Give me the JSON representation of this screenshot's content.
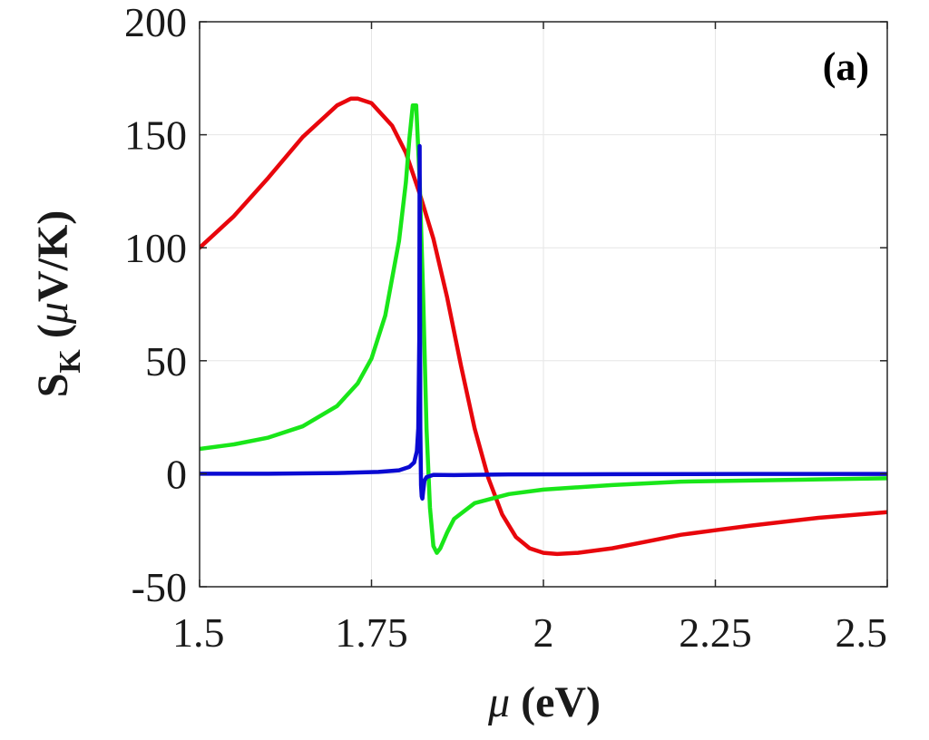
{
  "chart_data": {
    "type": "line",
    "title": "",
    "panel_label": "(a)",
    "xlabel": {
      "symbol": "μ",
      "unit": " (eV)"
    },
    "ylabel": {
      "main": "S",
      "subscript": "K",
      "paren_open": " (",
      "symbol": "μ",
      "unit": "V/K)"
    },
    "xlim": [
      1.5,
      2.5
    ],
    "ylim": [
      -50,
      200
    ],
    "xticks": [
      1.5,
      1.75,
      2,
      2.25,
      2.5
    ],
    "xtick_labels": [
      "1.5",
      "1.75",
      "2",
      "2.25",
      "2.5"
    ],
    "yticks": [
      -50,
      0,
      50,
      100,
      150,
      200
    ],
    "ytick_labels": [
      "-50",
      "0",
      "50",
      "100",
      "150",
      "200"
    ],
    "grid": true,
    "series": [
      {
        "name": "red",
        "color": "#e8060c",
        "x": [
          1.5,
          1.55,
          1.6,
          1.65,
          1.7,
          1.72,
          1.73,
          1.75,
          1.78,
          1.8,
          1.82,
          1.84,
          1.86,
          1.88,
          1.9,
          1.92,
          1.94,
          1.96,
          1.98,
          2.0,
          2.02,
          2.05,
          2.1,
          2.15,
          2.2,
          2.25,
          2.3,
          2.4,
          2.5
        ],
        "y": [
          100,
          114,
          131,
          149,
          163,
          166,
          166,
          164,
          154,
          142,
          124,
          104,
          78,
          48,
          20,
          -2,
          -18,
          -28,
          -33,
          -35,
          -35.5,
          -35,
          -33,
          -30,
          -27,
          -25,
          -23,
          -19.5,
          -17
        ]
      },
      {
        "name": "green",
        "color": "#19e619",
        "x": [
          1.5,
          1.55,
          1.6,
          1.65,
          1.7,
          1.73,
          1.75,
          1.77,
          1.79,
          1.8,
          1.805,
          1.81,
          1.815,
          1.82,
          1.825,
          1.83,
          1.835,
          1.84,
          1.845,
          1.85,
          1.86,
          1.87,
          1.9,
          1.95,
          2.0,
          2.1,
          2.2,
          2.3,
          2.4,
          2.5
        ],
        "y": [
          11,
          13,
          16,
          21,
          30,
          40,
          51,
          70,
          103,
          129,
          148,
          163,
          163,
          130,
          80,
          20,
          -15,
          -32,
          -35,
          -33,
          -26,
          -20,
          -13,
          -9,
          -7,
          -5,
          -3.5,
          -3,
          -2.5,
          -2
        ]
      },
      {
        "name": "blue",
        "color": "#0a0ad2",
        "x": [
          1.5,
          1.6,
          1.7,
          1.76,
          1.79,
          1.805,
          1.812,
          1.816,
          1.818,
          1.8195,
          1.82,
          1.8205,
          1.821,
          1.822,
          1.823,
          1.824,
          1.825,
          1.827,
          1.83,
          1.84,
          1.87,
          1.95,
          2.1,
          2.3,
          2.5
        ],
        "y": [
          0,
          0,
          0.3,
          0.8,
          1.5,
          3,
          5,
          10,
          20,
          60,
          145,
          80,
          20,
          -5,
          -10,
          -11,
          -8,
          -3,
          -1.5,
          -0.5,
          -0.6,
          -0.3,
          -0.2,
          -0.1,
          -0.1
        ]
      }
    ]
  }
}
